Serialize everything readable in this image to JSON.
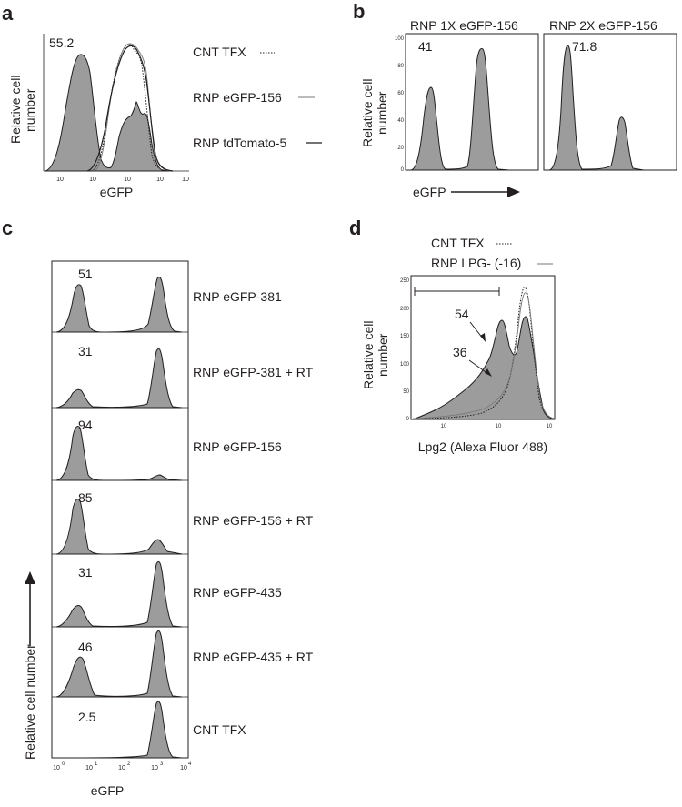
{
  "figure": {
    "panels": {
      "a": {
        "letter": "a",
        "ylabel_line1": "Relative cell",
        "ylabel_line2": "number",
        "xlabel": "eGFP",
        "value": "55.2",
        "legend": [
          "CNT TFX",
          "RNP eGFP-156",
          "RNP tdTomato-5"
        ]
      },
      "b": {
        "letter": "b",
        "ylabel_line1": "Relative cell",
        "ylabel_line2": "number",
        "xlabel": "eGFP",
        "titles": [
          "RNP 1X eGFP-156",
          "RNP 2X eGFP-156"
        ],
        "values": [
          "41",
          "71.8"
        ]
      },
      "c": {
        "letter": "c",
        "ylabel": "Relative cell number",
        "xlabel": "eGFP",
        "rows": [
          {
            "value": "51",
            "label": "RNP eGFP-381"
          },
          {
            "value": "31",
            "label": "RNP eGFP-381 + RT"
          },
          {
            "value": "94",
            "label": "RNP eGFP-156"
          },
          {
            "value": "85",
            "label": "RNP eGFP-156 + RT"
          },
          {
            "value": "31",
            "label": "RNP eGFP-435"
          },
          {
            "value": "46",
            "label": "RNP eGFP-435 + RT"
          },
          {
            "value": "2.5",
            "label": "CNT TFX"
          }
        ]
      },
      "d": {
        "letter": "d",
        "ylabel_line1": "Relative cell",
        "ylabel_line2": "number",
        "xlabel": "Lpg2 (Alexa Fluor 488)",
        "legend": [
          "CNT TFX",
          "RNP LPG- (-16)"
        ],
        "values": [
          "54",
          "36"
        ]
      }
    },
    "ticks": {
      "flow_x": [
        "10",
        "10",
        "10",
        "10",
        "10"
      ],
      "flow_x_exp": [
        "0",
        "1",
        "2",
        "3",
        "4"
      ],
      "d_y": [
        "250",
        "200",
        "150",
        "100",
        "50",
        "0"
      ],
      "b_y": [
        "100",
        "80",
        "60",
        "40",
        "20",
        "0"
      ]
    }
  }
}
